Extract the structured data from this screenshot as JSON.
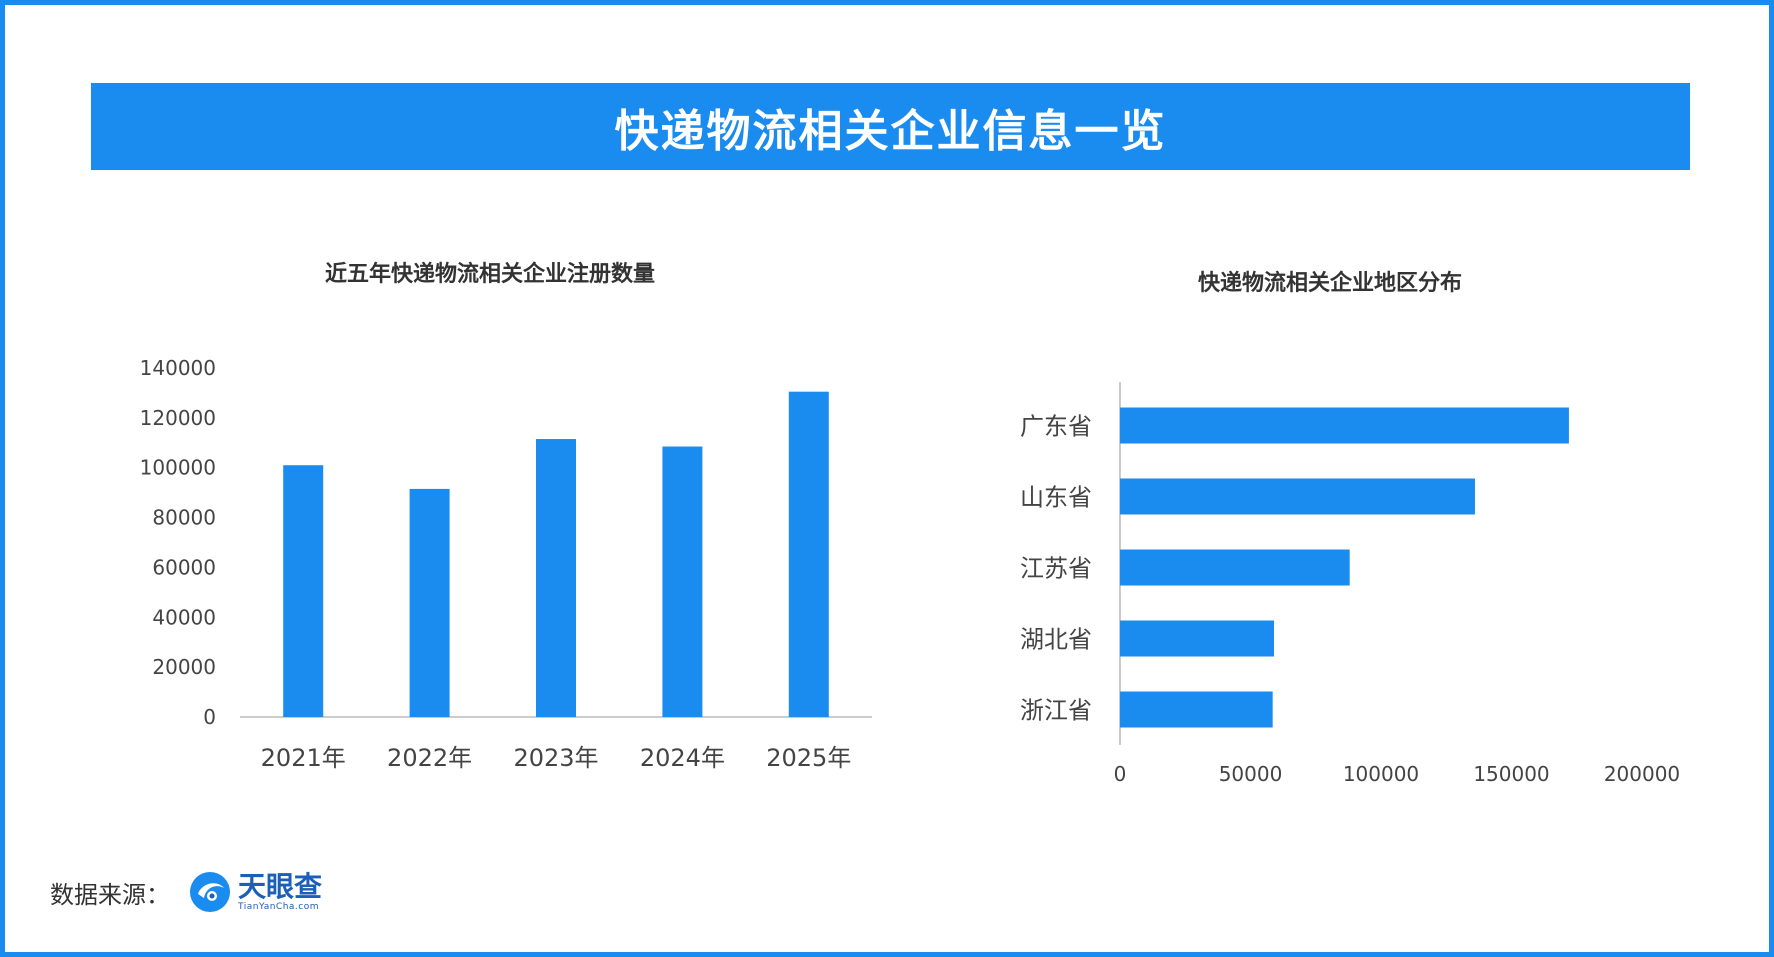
{
  "banner": {
    "title": "快递物流相关企业信息一览"
  },
  "footer": {
    "source_label": "数据来源：",
    "logo_name": "天眼查",
    "logo_sub": "TianYanCha.com"
  },
  "colors": {
    "bar": "#1a8cf0",
    "frame": "#1a8cf0",
    "axis": "#cccccc"
  },
  "chart_data": [
    {
      "type": "bar",
      "title": "近五年快递物流相关企业注册数量",
      "categories": [
        "2021年",
        "2022年",
        "2023年",
        "2024年",
        "2025年"
      ],
      "values": [
        101000,
        91500,
        111500,
        108500,
        130500
      ],
      "ylim": [
        0,
        140000
      ],
      "yticks": [
        0,
        20000,
        40000,
        60000,
        80000,
        100000,
        120000,
        140000
      ],
      "xlabel": "",
      "ylabel": "",
      "grid": false,
      "legend": "none"
    },
    {
      "type": "bar",
      "orientation": "horizontal",
      "title": "快递物流相关企业地区分布",
      "categories": [
        "广东省",
        "山东省",
        "江苏省",
        "湖北省",
        "浙江省"
      ],
      "values": [
        172000,
        136000,
        88000,
        59000,
        58500
      ],
      "xlim": [
        0,
        200000
      ],
      "xticks": [
        0,
        50000,
        100000,
        150000,
        200000
      ],
      "xlabel": "",
      "ylabel": "",
      "grid": false,
      "legend": "none"
    }
  ]
}
